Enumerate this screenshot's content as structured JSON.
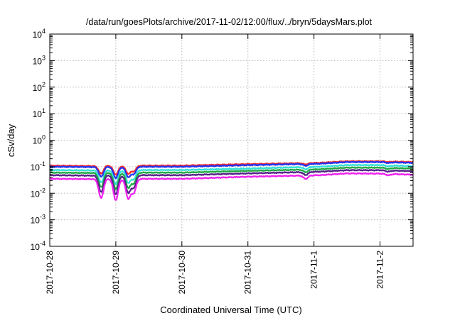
{
  "chart_data": {
    "type": "line",
    "title": "/data/run/goesPlots/archive/2017-11-02/12:00/flux/../bryn/5daysMars.plot",
    "xlabel": "Coordinated Universal Time (UTC)",
    "ylabel": "cSv/day",
    "yscale": "log",
    "ylim": [
      0.0001,
      10000
    ],
    "y_ticks": [
      {
        "value": 0.0001,
        "base": "10",
        "exp": "-4"
      },
      {
        "value": 0.001,
        "base": "10",
        "exp": "-3"
      },
      {
        "value": 0.01,
        "base": "10",
        "exp": "-2"
      },
      {
        "value": 0.1,
        "base": "10",
        "exp": "-1"
      },
      {
        "value": 1,
        "base": "10",
        "exp": "0"
      },
      {
        "value": 10,
        "base": "10",
        "exp": "1"
      },
      {
        "value": 100,
        "base": "10",
        "exp": "2"
      },
      {
        "value": 1000,
        "base": "10",
        "exp": "3"
      },
      {
        "value": 10000,
        "base": "10",
        "exp": "4"
      }
    ],
    "xlim": [
      "2017-10-28",
      "2017-11-02T12:00"
    ],
    "x_ticks": [
      "2017-10-28",
      "2017-10-29",
      "2017-10-30",
      "2017-10-31",
      "2017-11-1",
      "2017-11-2"
    ],
    "grid": true,
    "series": [
      {
        "color": "#ff2a2a",
        "x": [
          "2017-10-28",
          "2017-10-28T18:00",
          "2017-10-28T20:00",
          "2017-10-29",
          "2017-10-29T06:00",
          "2017-10-30",
          "2017-10-31",
          "2017-11-01T02:00",
          "2017-11-01T12:00",
          "2017-11-02",
          "2017-11-02T12:00"
        ],
        "values": [
          0.11,
          0.105,
          0.11,
          0.105,
          0.11,
          0.11,
          0.125,
          0.14,
          0.16,
          0.16,
          0.15
        ]
      },
      {
        "color": "#2233ee",
        "x": [
          "2017-10-28",
          "2017-10-28T18:00",
          "2017-10-28T20:00",
          "2017-10-29",
          "2017-10-29T06:00",
          "2017-10-30",
          "2017-10-31",
          "2017-11-01T02:00",
          "2017-11-01T12:00",
          "2017-11-02",
          "2017-11-02T12:00"
        ],
        "values": [
          0.1,
          0.097,
          0.1,
          0.097,
          0.1,
          0.1,
          0.115,
          0.13,
          0.15,
          0.15,
          0.14
        ]
      },
      {
        "color": "#33e0d8",
        "x": [
          "2017-10-28",
          "2017-10-28T18:00",
          "2017-10-28T20:00",
          "2017-10-29",
          "2017-10-29T06:00",
          "2017-10-30",
          "2017-10-31",
          "2017-11-01T02:00",
          "2017-11-01T12:00",
          "2017-11-02",
          "2017-11-02T12:00"
        ],
        "values": [
          0.075,
          0.072,
          0.075,
          0.072,
          0.075,
          0.075,
          0.085,
          0.1,
          0.115,
          0.115,
          0.105
        ]
      },
      {
        "color": "#22aa44",
        "x": [
          "2017-10-28",
          "2017-10-28T18:00",
          "2017-10-28T20:00",
          "2017-10-29",
          "2017-10-29T06:00",
          "2017-10-30",
          "2017-10-31",
          "2017-11-01T02:00",
          "2017-11-01T12:00",
          "2017-11-02",
          "2017-11-02T12:00"
        ],
        "values": [
          0.06,
          0.058,
          0.06,
          0.058,
          0.06,
          0.06,
          0.07,
          0.08,
          0.092,
          0.092,
          0.085
        ]
      },
      {
        "color": "#552288",
        "x": [
          "2017-10-28",
          "2017-10-28T18:00",
          "2017-10-28T20:00",
          "2017-10-29",
          "2017-10-29T06:00",
          "2017-10-30",
          "2017-10-31",
          "2017-11-01T02:00",
          "2017-11-01T12:00",
          "2017-11-02",
          "2017-11-02T12:00"
        ],
        "values": [
          0.048,
          0.046,
          0.048,
          0.046,
          0.048,
          0.048,
          0.056,
          0.065,
          0.074,
          0.074,
          0.068
        ]
      },
      {
        "color": "#ee22ee",
        "x": [
          "2017-10-28",
          "2017-10-28T18:00",
          "2017-10-28T20:00",
          "2017-10-29",
          "2017-10-29T06:00",
          "2017-10-30",
          "2017-10-31",
          "2017-11-01T02:00",
          "2017-11-01T12:00",
          "2017-11-02",
          "2017-11-02T12:00"
        ],
        "values": [
          0.035,
          0.034,
          0.035,
          0.034,
          0.035,
          0.035,
          0.042,
          0.048,
          0.056,
          0.055,
          0.05
        ]
      }
    ],
    "dips": [
      {
        "x": "2017-10-28T18:40",
        "min": 0.006
      },
      {
        "x": "2017-10-29T00:00",
        "min": 0.005
      },
      {
        "x": "2017-10-29T04:30",
        "min": 0.006
      },
      {
        "x": "2017-10-29T06:30",
        "min": 0.01
      },
      {
        "x": "2017-10-31T21:00",
        "min": 0.025
      },
      {
        "x": "2017-11-02T03:00",
        "min": 0.03
      }
    ]
  }
}
